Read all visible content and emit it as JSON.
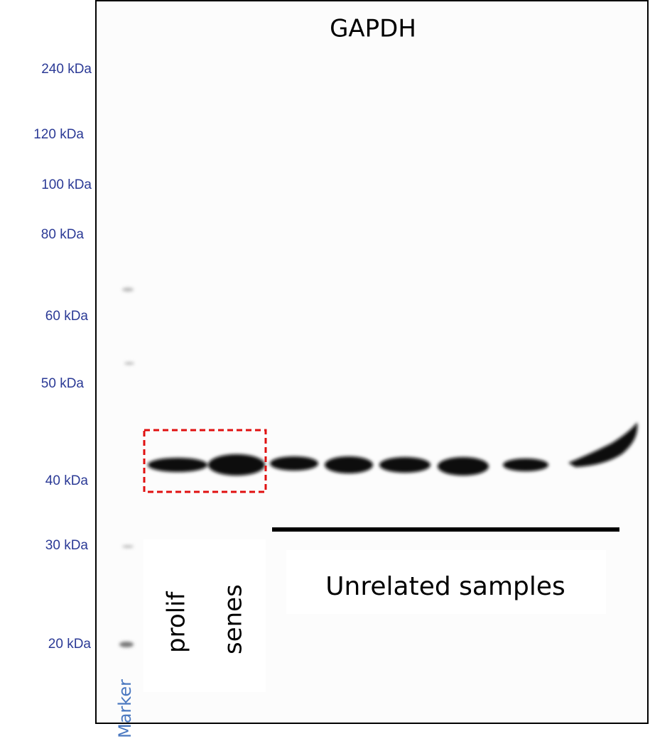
{
  "title": "GAPDH",
  "marker_labels": [
    "240 kDa",
    "120 kDa",
    "100 kDa",
    "80 kDa",
    "60 kDa",
    "50 kDa",
    "40 kDa",
    "30 kDa",
    "20 kDa"
  ],
  "lanes": {
    "marker": "Marker",
    "prolif": "prolif",
    "senes": "senes",
    "group": "Unrelated samples"
  }
}
